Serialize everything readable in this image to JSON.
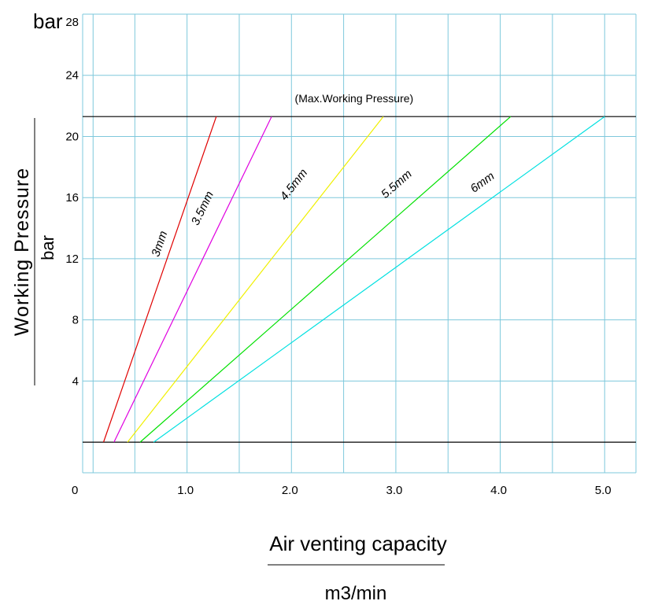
{
  "chart_data": {
    "type": "line",
    "ylabel": "Working Pressure",
    "ylabel_unit": "bar",
    "y_unit_top": "bar",
    "xlabel": "Air venting capacity",
    "xlabel_unit": "m3/min",
    "xlim": [
      0,
      5.3
    ],
    "ylim": [
      -2,
      28
    ],
    "x_ticks": [
      {
        "value": 0,
        "label": "0"
      },
      {
        "value": 1,
        "label": "1.0"
      },
      {
        "value": 2,
        "label": "2.0"
      },
      {
        "value": 3,
        "label": "3.0"
      },
      {
        "value": 4,
        "label": "4.0"
      },
      {
        "value": 5,
        "label": "5.0"
      }
    ],
    "y_ticks": [
      {
        "value": 4,
        "label": "4"
      },
      {
        "value": 8,
        "label": "8"
      },
      {
        "value": 12,
        "label": "12"
      },
      {
        "value": 16,
        "label": "16"
      },
      {
        "value": 20,
        "label": "20"
      },
      {
        "value": 24,
        "label": "24"
      },
      {
        "value": 28,
        "label": "28"
      }
    ],
    "x_grid": [
      0.1,
      0.5,
      1.0,
      1.5,
      2.0,
      2.5,
      3.0,
      3.5,
      4.0,
      4.5,
      5.0
    ],
    "y_grid": [
      4,
      8,
      12,
      16,
      20,
      24,
      28
    ],
    "grid": true,
    "max_pressure": {
      "value": 21.3,
      "label": "(Max.Working Pressure)"
    },
    "baseline": 0,
    "series": [
      {
        "name": "3mm",
        "color": "#e00000",
        "x": [
          0.2,
          1.28
        ],
        "y": [
          0,
          21.3
        ],
        "label_at": [
          0.77,
          12.9
        ]
      },
      {
        "name": "3.5mm",
        "color": "#e000e0",
        "x": [
          0.3,
          1.81
        ],
        "y": [
          0,
          21.3
        ],
        "label_at": [
          1.18,
          15.2
        ]
      },
      {
        "name": "4.5mm",
        "color": "#f0f000",
        "x": [
          0.43,
          2.88
        ],
        "y": [
          0,
          21.3
        ],
        "label_at": [
          2.05,
          16.7
        ]
      },
      {
        "name": "5.5mm",
        "color": "#00e000",
        "x": [
          0.55,
          4.1
        ],
        "y": [
          0,
          21.3
        ],
        "label_at": [
          3.03,
          16.7
        ]
      },
      {
        "name": "6mm",
        "color": "#00e0e0",
        "x": [
          0.68,
          5.0
        ],
        "y": [
          0,
          21.3
        ],
        "label_at": [
          3.85,
          16.8
        ]
      }
    ]
  }
}
